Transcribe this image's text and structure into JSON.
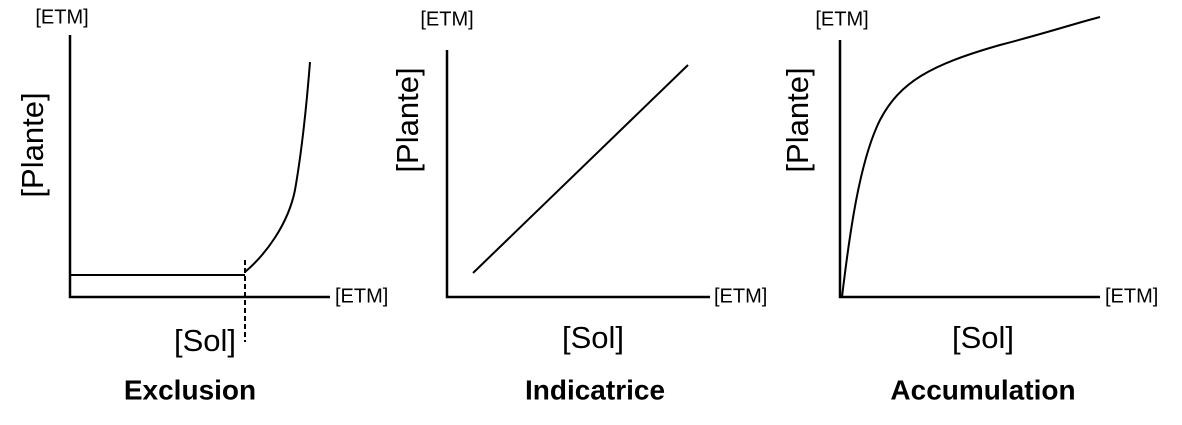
{
  "panels": [
    {
      "title": "Exclusion",
      "y_label": "[Plante]",
      "y_unit": "[ETM]",
      "x_label": "[Sol]",
      "x_unit": "[ETM]"
    },
    {
      "title": "Indicatrice",
      "y_label": "[Plante]",
      "y_unit": "[ETM]",
      "x_label": "[Sol]",
      "x_unit": "[ETM]"
    },
    {
      "title": "Accumulation",
      "y_label": "[Plante]",
      "y_unit": "[ETM]",
      "x_label": "[Sol]",
      "x_unit": "[ETM]"
    }
  ]
}
